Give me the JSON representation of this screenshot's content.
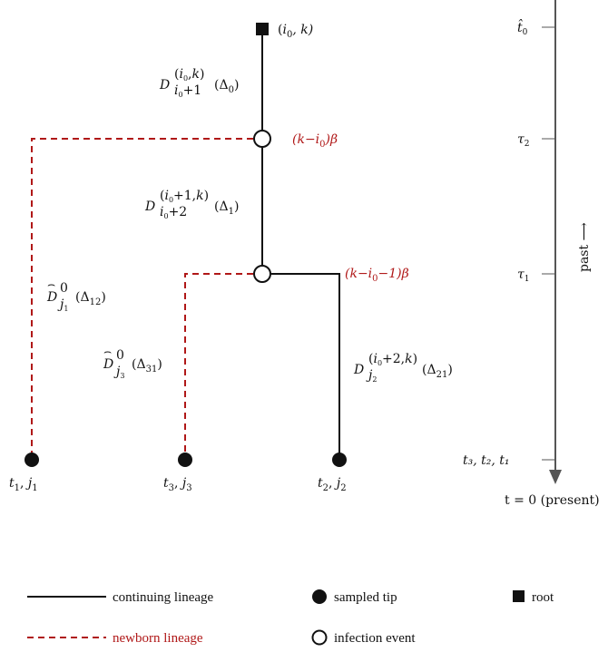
{
  "root_label_i": "i",
  "root_label_sub": "0",
  "root_label_rest": ", k)",
  "delta0_label": "(Δ",
  "delta0_sub": "0",
  "rate1": "(k−i",
  "rate1_sub": "0",
  "rate1_rest": ")β",
  "delta1_label": "(Δ",
  "delta1_sub": "1",
  "rate2": "(k−i",
  "rate2_sub": "0",
  "rate2_rest": "−1)β",
  "d12_label": "(Δ",
  "d12_sub": "12",
  "d31_label": "(Δ",
  "d31_sub": "31",
  "d21_label": "(Δ",
  "d21_sub": "21",
  "tip1": {
    "t": "t",
    "tsub": "1",
    "j": "j",
    "jsub": "1"
  },
  "tip3": {
    "t": "t",
    "tsub": "3",
    "j": "j",
    "jsub": "3"
  },
  "tip2": {
    "t": "t",
    "tsub": "2",
    "j": "j",
    "jsub": "2"
  },
  "axis": {
    "t0hat": "t̂",
    "t0hat_sub": "0",
    "tau2": "τ",
    "tau2_sub": "2",
    "tau1": "τ",
    "tau1_sub": "1",
    "bottom_ticks": "t₃, t₂, t₁",
    "present": "t = 0 (present)",
    "direction": "past ⟶"
  },
  "legend": {
    "continuing": "continuing lineage",
    "newborn": "newborn lineage",
    "sampled": "sampled tip",
    "infection": "infection event",
    "root": "root"
  },
  "colors": {
    "red": "#b01818",
    "black": "#111111"
  }
}
